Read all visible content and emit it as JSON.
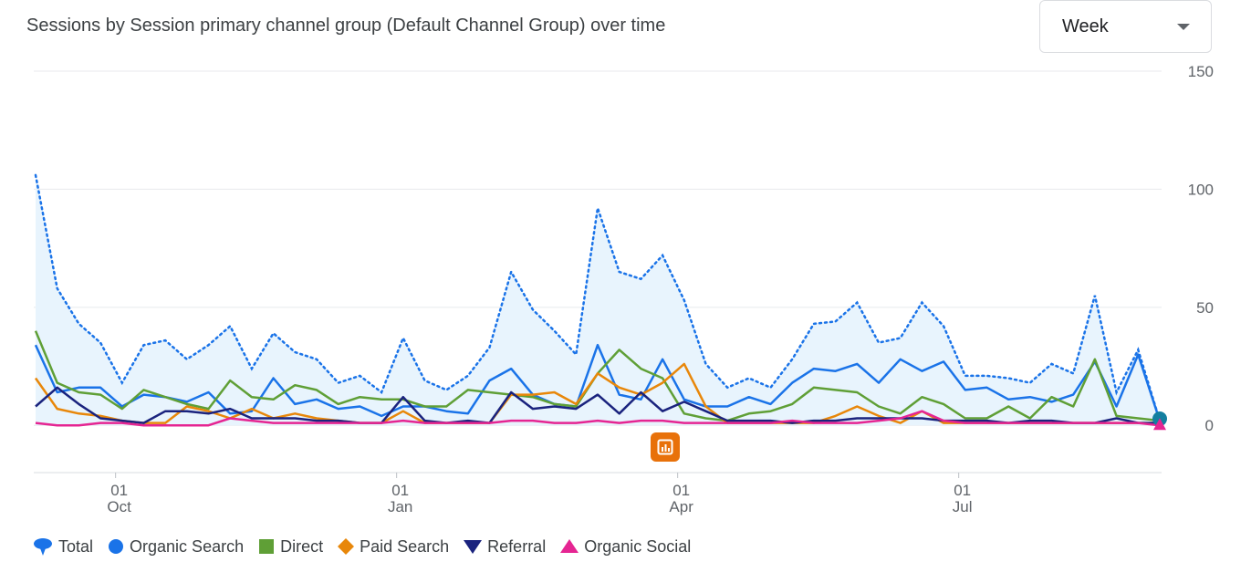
{
  "title": "Sessions by Session primary channel group (Default Channel Group) over time",
  "period_select": {
    "value": "Week"
  },
  "icons": {
    "caret": "chevron-down-icon",
    "insight": "insights-icon"
  },
  "chart_data": {
    "type": "line",
    "title": "Sessions by Session primary channel group (Default Channel Group) over time",
    "ylim": [
      -20,
      150
    ],
    "y_ticks": [
      "150",
      "100",
      "50",
      "0"
    ],
    "y_tick_values": [
      150,
      100,
      50,
      0
    ],
    "x_ticks": [
      {
        "day": "01",
        "month": "Oct",
        "week_index": 4
      },
      {
        "day": "01",
        "month": "Jan",
        "week_index": 17
      },
      {
        "day": "01",
        "month": "Apr",
        "week_index": 30
      },
      {
        "day": "01",
        "month": "Jul",
        "week_index": 43
      }
    ],
    "weeks": 54,
    "grid": true,
    "legend_position": "bottom-left",
    "series": [
      {
        "name": "Total",
        "color": "#1a73e8",
        "style": "dotted-area",
        "values": [
          106,
          58,
          43,
          35,
          18,
          34,
          36,
          28,
          34,
          42,
          24,
          39,
          31,
          28,
          18,
          21,
          14,
          37,
          19,
          15,
          21,
          33,
          65,
          49,
          40,
          30,
          92,
          65,
          62,
          72,
          53,
          26,
          16,
          20,
          16,
          28,
          43,
          44,
          52,
          35,
          37,
          52,
          42,
          21,
          21,
          20,
          18,
          26,
          22,
          55,
          14,
          32,
          2
        ]
      },
      {
        "name": "Organic Search",
        "color": "#1a73e8",
        "values": [
          34,
          14,
          16,
          16,
          8,
          13,
          12,
          10,
          14,
          5,
          6,
          20,
          9,
          11,
          7,
          8,
          4,
          8,
          8,
          6,
          5,
          19,
          24,
          13,
          9,
          8,
          34,
          13,
          11,
          28,
          11,
          8,
          8,
          12,
          9,
          18,
          24,
          23,
          26,
          18,
          28,
          23,
          27,
          15,
          16,
          11,
          12,
          10,
          13,
          27,
          8,
          30,
          2
        ]
      },
      {
        "name": "Direct",
        "color": "#5f9f36",
        "values": [
          40,
          18,
          14,
          13,
          7,
          15,
          12,
          9,
          7,
          19,
          12,
          11,
          17,
          15,
          9,
          12,
          11,
          11,
          8,
          8,
          15,
          14,
          13,
          12,
          9,
          8,
          22,
          32,
          24,
          20,
          5,
          3,
          2,
          5,
          6,
          9,
          16,
          15,
          14,
          8,
          5,
          12,
          9,
          3,
          3,
          8,
          3,
          12,
          8,
          28,
          4,
          3,
          2
        ]
      },
      {
        "name": "Paid Search",
        "color": "#e8870a",
        "values": [
          20,
          7,
          5,
          4,
          2,
          1,
          1,
          8,
          6,
          3,
          7,
          3,
          5,
          3,
          2,
          1,
          1,
          6,
          1,
          1,
          1,
          1,
          13,
          13,
          14,
          9,
          22,
          16,
          13,
          18,
          26,
          8,
          1,
          1,
          1,
          1,
          1,
          4,
          8,
          4,
          1,
          6,
          1,
          1,
          1,
          1,
          1,
          1,
          1,
          1,
          1,
          1,
          1
        ]
      },
      {
        "name": "Referral",
        "color": "#1a237e",
        "values": [
          8,
          16,
          9,
          3,
          2,
          1,
          6,
          6,
          5,
          7,
          3,
          3,
          3,
          2,
          2,
          1,
          1,
          12,
          2,
          1,
          2,
          1,
          14,
          7,
          8,
          7,
          13,
          5,
          14,
          6,
          10,
          6,
          2,
          2,
          2,
          1,
          2,
          2,
          3,
          3,
          3,
          3,
          2,
          2,
          2,
          1,
          2,
          2,
          1,
          1,
          3,
          1,
          1
        ]
      },
      {
        "name": "Organic Social",
        "color": "#e52592",
        "values": [
          1,
          0,
          0,
          1,
          1,
          0,
          0,
          0,
          0,
          3,
          2,
          1,
          1,
          1,
          1,
          1,
          1,
          2,
          1,
          1,
          1,
          1,
          2,
          2,
          1,
          1,
          2,
          1,
          2,
          2,
          1,
          1,
          1,
          1,
          1,
          2,
          1,
          1,
          1,
          2,
          3,
          6,
          2,
          1,
          1,
          1,
          1,
          1,
          1,
          1,
          1,
          1,
          0
        ]
      }
    ]
  },
  "legend": [
    {
      "label": "Total",
      "color": "#1a73e8",
      "icon": "balloon-icon"
    },
    {
      "label": "Organic Search",
      "color": "#1a73e8",
      "icon": "circle-icon"
    },
    {
      "label": "Direct",
      "color": "#5f9f36",
      "icon": "square-icon"
    },
    {
      "label": "Paid Search",
      "color": "#e8870a",
      "icon": "diamond-icon"
    },
    {
      "label": "Referral",
      "color": "#1a237e",
      "icon": "triangle-down-icon"
    },
    {
      "label": "Organic Social",
      "color": "#e52592",
      "icon": "triangle-up-icon"
    }
  ]
}
